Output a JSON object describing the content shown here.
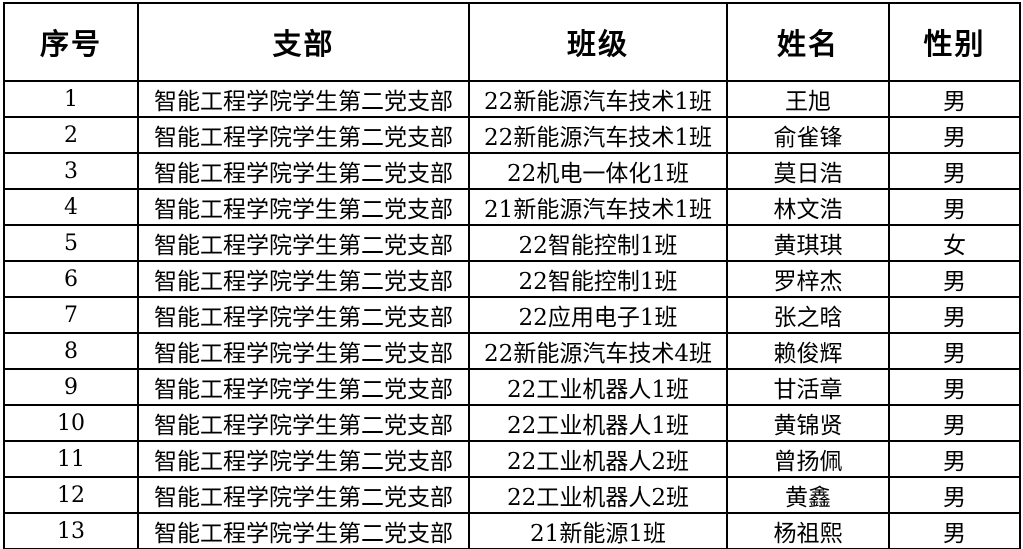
{
  "table": {
    "columns": [
      "序号",
      "支部",
      "班级",
      "姓名",
      "性别"
    ],
    "rows": [
      [
        "1",
        "智能工程学院学生第二党支部",
        "22新能源汽车技术1班",
        "王旭",
        "男"
      ],
      [
        "2",
        "智能工程学院学生第二党支部",
        "22新能源汽车技术1班",
        "俞雀锋",
        "男"
      ],
      [
        "3",
        "智能工程学院学生第二党支部",
        "22机电一体化1班",
        "莫日浩",
        "男"
      ],
      [
        "4",
        "智能工程学院学生第二党支部",
        "21新能源汽车技术1班",
        "林文浩",
        "男"
      ],
      [
        "5",
        "智能工程学院学生第二党支部",
        "22智能控制1班",
        "黄琪琪",
        "女"
      ],
      [
        "6",
        "智能工程学院学生第二党支部",
        "22智能控制1班",
        "罗梓杰",
        "男"
      ],
      [
        "7",
        "智能工程学院学生第二党支部",
        "22应用电子1班",
        "张之晗",
        "男"
      ],
      [
        "8",
        "智能工程学院学生第二党支部",
        "22新能源汽车技术4班",
        "赖俊辉",
        "男"
      ],
      [
        "9",
        "智能工程学院学生第二党支部",
        "22工业机器人1班",
        "甘活章",
        "男"
      ],
      [
        "10",
        "智能工程学院学生第二党支部",
        "22工业机器人1班",
        "黄锦贤",
        "男"
      ],
      [
        "11",
        "智能工程学院学生第二党支部",
        "22工业机器人2班",
        "曾扬佩",
        "男"
      ],
      [
        "12",
        "智能工程学院学生第二党支部",
        "22工业机器人2班",
        "黄鑫",
        "男"
      ],
      [
        "13",
        "智能工程学院学生第二党支部",
        "21新能源1班",
        "杨祖熙",
        "男"
      ]
    ],
    "border_color": "#000000",
    "background_color": "#ffffff",
    "text_color": "#000000"
  }
}
